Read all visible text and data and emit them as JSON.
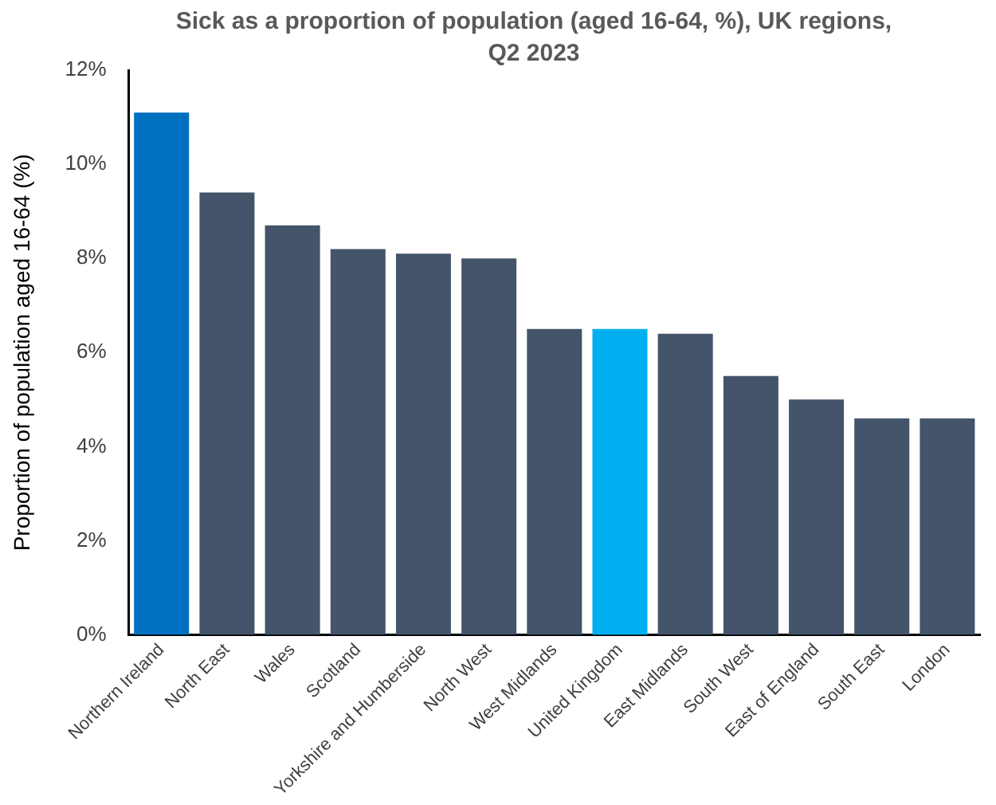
{
  "chart_data": {
    "type": "bar",
    "title": "Sick as a proportion of population (aged 16-64, %), UK regions, Q2 2023",
    "ylabel": "Proportion of population aged 16-64 (%)",
    "categories": [
      "Northern Ireland",
      "North East",
      "Wales",
      "Scotland",
      "Yorkshire and Humberside",
      "North West",
      "West Midlands",
      "United Kingdom",
      "East Midlands",
      "South West",
      "East of England",
      "South East",
      "London"
    ],
    "values": [
      11.1,
      9.4,
      8.7,
      8.2,
      8.1,
      8.0,
      6.5,
      6.5,
      6.4,
      5.5,
      5.0,
      4.6,
      4.6
    ],
    "colors": [
      "#0070c0",
      "#44546a",
      "#44546a",
      "#44546a",
      "#44546a",
      "#44546a",
      "#44546a",
      "#00b0f0",
      "#44546a",
      "#44546a",
      "#44546a",
      "#44546a",
      "#44546a"
    ],
    "ylim": [
      0,
      12
    ],
    "yticks": [
      {
        "value": 0,
        "label": "0%"
      },
      {
        "value": 2,
        "label": "2%"
      },
      {
        "value": 4,
        "label": "4%"
      },
      {
        "value": 6,
        "label": "6%"
      },
      {
        "value": 8,
        "label": "8%"
      },
      {
        "value": 10,
        "label": "10%"
      },
      {
        "value": 12,
        "label": "12%"
      }
    ],
    "grid": false,
    "legend": false
  }
}
